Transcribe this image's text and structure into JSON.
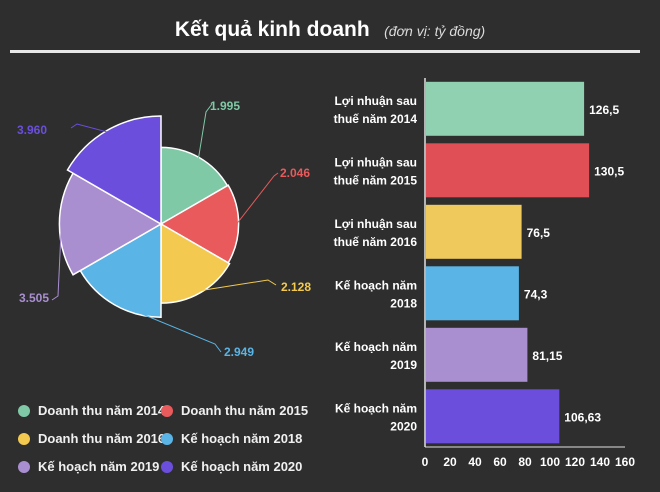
{
  "header": {
    "title": "Kết quả kinh doanh",
    "subtitle": "(đơn vị: tỷ đồng)"
  },
  "chart_data": [
    {
      "type": "pie",
      "variant": "rose",
      "categories": [
        "Doanh thu năm 2014",
        "Doanh thu năm 2015",
        "Doanh thu năm 2016",
        "Kế hoạch năm 2018",
        "Kế hoạch năm 2019",
        "Kế hoạch năm 2020"
      ],
      "values": [
        1.995,
        2.046,
        2.128,
        2.949,
        3.505,
        3.96
      ],
      "labels": [
        "1.995",
        "2.046",
        "2.128",
        "2.949",
        "3.505",
        "3.960"
      ],
      "colors": [
        "#7fc9a6",
        "#e85a5c",
        "#f3c94f",
        "#5ab4e5",
        "#a98fd0",
        "#6b4fdc"
      ],
      "legend": "bottom"
    },
    {
      "type": "bar",
      "orientation": "horizontal",
      "categories": [
        [
          "Lợi nhuận sau",
          "thuế năm 2014"
        ],
        [
          "Lợi nhuận sau",
          "thuế năm 2015"
        ],
        [
          "Lợi nhuận sau",
          "thuế năm 2016"
        ],
        [
          "Kế hoạch năm",
          "2018"
        ],
        [
          "Kế hoạch năm",
          "2019"
        ],
        [
          "Kế hoạch năm",
          "2020"
        ]
      ],
      "values": [
        126.5,
        130.5,
        76.5,
        74.3,
        81.15,
        106.63
      ],
      "labels": [
        "126,5",
        "130,5",
        "76,5",
        "74,3",
        "81,15",
        "106,63"
      ],
      "colors": [
        "#8fd1b0",
        "#e04f55",
        "#f0c95c",
        "#5ab4e5",
        "#a98fd0",
        "#6b4fdc"
      ],
      "xlim": [
        0,
        160
      ],
      "xticks": [
        "0",
        "20",
        "40",
        "60",
        "80",
        "100",
        "120",
        "140",
        "160"
      ]
    }
  ]
}
